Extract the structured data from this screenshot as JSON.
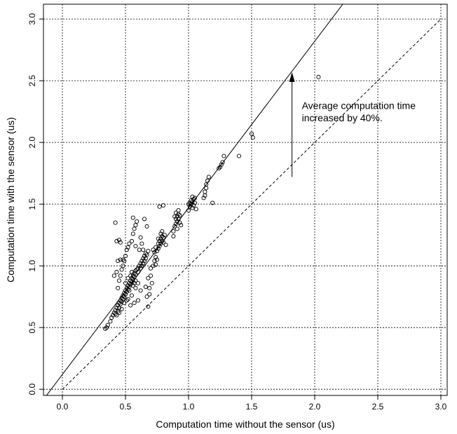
{
  "chart_data": {
    "type": "scatter",
    "title": "",
    "xlabel": "Computation time without the sensor (us)",
    "ylabel": "Computation time with the sensor (us)",
    "xlim": [
      -0.15,
      3.05
    ],
    "ylim": [
      -0.05,
      3.12
    ],
    "xticks": [
      0.0,
      0.5,
      1.0,
      1.5,
      2.0,
      2.5,
      3.0
    ],
    "yticks": [
      0.0,
      0.5,
      1.0,
      1.5,
      2.0,
      2.5,
      3.0
    ],
    "xtick_labels": [
      "0.0",
      "0.5",
      "1.0",
      "1.5",
      "2.0",
      "2.5",
      "3.0"
    ],
    "ytick_labels": [
      "0.0",
      "0.5",
      "1.0",
      "1.5",
      "2.0",
      "2.5",
      "3.0"
    ],
    "grid": true,
    "grid_style": "dotted",
    "marker": "open-circle",
    "annotation": {
      "lines": [
        "Average computation time",
        "increased by 40%."
      ],
      "arrow_x": 1.82,
      "arrow_from_y": 1.72,
      "arrow_to_y": 2.57
    },
    "reference_lines": [
      {
        "kind": "identity",
        "style": "dashed",
        "x": [
          0.0,
          3.0
        ],
        "y": [
          0.0,
          3.0
        ]
      },
      {
        "kind": "fit",
        "style": "solid",
        "intercept": 0.12,
        "slope": 1.35,
        "x": [
          -0.2,
          2.4
        ]
      }
    ],
    "points": [
      [
        0.34,
        0.49
      ],
      [
        0.35,
        0.5
      ],
      [
        0.36,
        0.52
      ],
      [
        0.38,
        0.55
      ],
      [
        0.39,
        0.58
      ],
      [
        0.4,
        0.6
      ],
      [
        0.41,
        0.62
      ],
      [
        0.42,
        0.61
      ],
      [
        0.42,
        0.64
      ],
      [
        0.43,
        0.66
      ],
      [
        0.44,
        0.63
      ],
      [
        0.44,
        0.68
      ],
      [
        0.45,
        0.7
      ],
      [
        0.45,
        0.66
      ],
      [
        0.46,
        0.72
      ],
      [
        0.46,
        0.69
      ],
      [
        0.47,
        0.74
      ],
      [
        0.47,
        0.71
      ],
      [
        0.48,
        0.76
      ],
      [
        0.48,
        0.73
      ],
      [
        0.49,
        0.78
      ],
      [
        0.49,
        0.75
      ],
      [
        0.5,
        0.8
      ],
      [
        0.5,
        0.77
      ],
      [
        0.51,
        0.82
      ],
      [
        0.51,
        0.79
      ],
      [
        0.52,
        0.84
      ],
      [
        0.52,
        0.81
      ],
      [
        0.53,
        0.86
      ],
      [
        0.53,
        0.83
      ],
      [
        0.54,
        0.88
      ],
      [
        0.54,
        0.85
      ],
      [
        0.55,
        0.9
      ],
      [
        0.55,
        0.87
      ],
      [
        0.56,
        0.92
      ],
      [
        0.56,
        0.89
      ],
      [
        0.57,
        0.94
      ],
      [
        0.57,
        0.91
      ],
      [
        0.58,
        0.96
      ],
      [
        0.58,
        0.93
      ],
      [
        0.59,
        0.97
      ],
      [
        0.6,
        0.98
      ],
      [
        0.6,
        0.95
      ],
      [
        0.61,
        1.0
      ],
      [
        0.62,
        1.02
      ],
      [
        0.62,
        0.98
      ],
      [
        0.63,
        1.04
      ],
      [
        0.63,
        1.0
      ],
      [
        0.64,
        1.06
      ],
      [
        0.64,
        1.02
      ],
      [
        0.65,
        1.08
      ],
      [
        0.65,
        1.04
      ],
      [
        0.66,
        1.1
      ],
      [
        0.66,
        1.06
      ],
      [
        0.67,
        1.09
      ],
      [
        0.68,
        1.12
      ],
      [
        0.5,
        0.86
      ],
      [
        0.52,
        0.9
      ],
      [
        0.54,
        0.92
      ],
      [
        0.55,
        0.95
      ],
      [
        0.53,
        0.8
      ],
      [
        0.56,
        0.84
      ],
      [
        0.57,
        0.86
      ],
      [
        0.58,
        0.88
      ],
      [
        0.45,
        0.62
      ],
      [
        0.43,
        0.6
      ],
      [
        0.47,
        0.65
      ],
      [
        0.49,
        0.7
      ],
      [
        0.51,
        0.72
      ],
      [
        0.55,
        0.76
      ],
      [
        0.58,
        0.82
      ],
      [
        0.6,
        0.86
      ],
      [
        0.44,
        0.82
      ],
      [
        0.45,
        0.88
      ],
      [
        0.46,
        0.92
      ],
      [
        0.47,
        0.97
      ],
      [
        0.48,
        1.0
      ],
      [
        0.49,
        1.04
      ],
      [
        0.5,
        1.08
      ],
      [
        0.51,
        1.13
      ],
      [
        0.52,
        1.15
      ],
      [
        0.53,
        1.18
      ],
      [
        0.55,
        1.2
      ],
      [
        0.56,
        1.26
      ],
      [
        0.57,
        1.3
      ],
      [
        0.58,
        1.33
      ],
      [
        0.59,
        1.36
      ],
      [
        0.42,
        1.35
      ],
      [
        0.43,
        1.2
      ],
      [
        0.45,
        1.21
      ],
      [
        0.46,
        1.19
      ],
      [
        0.44,
        1.04
      ],
      [
        0.46,
        1.05
      ],
      [
        0.48,
        1.05
      ],
      [
        0.41,
        0.92
      ],
      [
        0.43,
        0.95
      ],
      [
        0.56,
        1.39
      ],
      [
        0.65,
        1.38
      ],
      [
        0.67,
        1.32
      ],
      [
        0.62,
        1.23
      ],
      [
        0.63,
        1.18
      ],
      [
        0.61,
        1.13
      ],
      [
        0.64,
        1.13
      ],
      [
        0.58,
        1.16
      ],
      [
        0.54,
        0.68
      ],
      [
        0.57,
        0.7
      ],
      [
        0.6,
        0.72
      ],
      [
        0.52,
        0.73
      ],
      [
        0.67,
        0.75
      ],
      [
        0.69,
        0.77
      ],
      [
        0.66,
        0.83
      ],
      [
        0.68,
        0.9
      ],
      [
        0.7,
        0.92
      ],
      [
        0.7,
        0.98
      ],
      [
        0.72,
        1.0
      ],
      [
        0.73,
        1.04
      ],
      [
        0.71,
        0.86
      ],
      [
        0.69,
        0.82
      ],
      [
        0.68,
        0.67
      ],
      [
        0.62,
        0.8
      ],
      [
        0.74,
        1.07
      ],
      [
        0.75,
        1.12
      ],
      [
        0.76,
        1.14
      ],
      [
        0.76,
        1.18
      ],
      [
        0.77,
        1.16
      ],
      [
        0.77,
        1.2
      ],
      [
        0.78,
        1.22
      ],
      [
        0.78,
        1.18
      ],
      [
        0.79,
        1.24
      ],
      [
        0.79,
        1.2
      ],
      [
        0.8,
        1.19
      ],
      [
        0.8,
        1.23
      ],
      [
        0.76,
        1.22
      ],
      [
        0.78,
        1.26
      ],
      [
        0.74,
        1.15
      ],
      [
        0.73,
        1.11
      ],
      [
        0.72,
        1.13
      ],
      [
        0.8,
        1.49
      ],
      [
        0.77,
        1.48
      ],
      [
        0.75,
        1.05
      ],
      [
        0.74,
        1.01
      ],
      [
        0.79,
        1.28
      ],
      [
        0.81,
        1.25
      ],
      [
        0.82,
        1.17
      ],
      [
        0.88,
        1.28
      ],
      [
        0.89,
        1.32
      ],
      [
        0.9,
        1.34
      ],
      [
        0.9,
        1.38
      ],
      [
        0.91,
        1.36
      ],
      [
        0.91,
        1.4
      ],
      [
        0.92,
        1.42
      ],
      [
        0.92,
        1.38
      ],
      [
        0.93,
        1.35
      ],
      [
        0.89,
        1.4
      ],
      [
        0.9,
        1.43
      ],
      [
        0.93,
        1.41
      ],
      [
        0.91,
        1.3
      ],
      [
        0.88,
        1.24
      ],
      [
        0.94,
        1.33
      ],
      [
        0.92,
        1.45
      ],
      [
        1.0,
        1.45
      ],
      [
        1.01,
        1.48
      ],
      [
        1.01,
        1.51
      ],
      [
        1.02,
        1.5
      ],
      [
        1.02,
        1.53
      ],
      [
        1.03,
        1.47
      ],
      [
        1.03,
        1.52
      ],
      [
        1.04,
        1.49
      ],
      [
        1.04,
        1.54
      ],
      [
        1.05,
        1.51
      ],
      [
        1.06,
        1.46
      ],
      [
        1.0,
        1.5
      ],
      [
        1.05,
        1.55
      ],
      [
        1.03,
        1.56
      ],
      [
        1.12,
        1.55
      ],
      [
        1.13,
        1.6
      ],
      [
        1.14,
        1.66
      ],
      [
        1.15,
        1.69
      ],
      [
        1.14,
        1.63
      ],
      [
        1.16,
        1.72
      ],
      [
        1.13,
        1.57
      ],
      [
        1.19,
        1.51
      ],
      [
        1.24,
        1.79
      ],
      [
        1.26,
        1.82
      ],
      [
        1.27,
        1.84
      ],
      [
        1.25,
        1.8
      ],
      [
        1.28,
        1.89
      ],
      [
        1.4,
        1.89
      ],
      [
        1.5,
        2.07
      ],
      [
        1.51,
        2.04
      ],
      [
        2.03,
        2.53
      ]
    ]
  }
}
